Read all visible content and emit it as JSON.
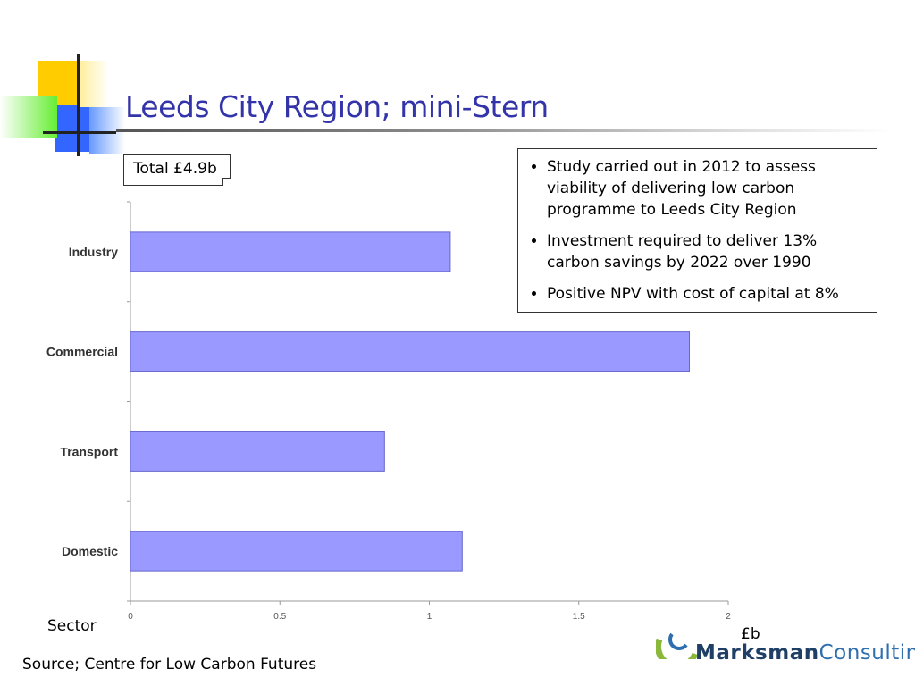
{
  "slide": {
    "title": "Leeds City Region; mini-Stern",
    "total": "Total £4.9b",
    "bullets": [
      "Study carried out in 2012 to assess viability of delivering low carbon programme to Leeds City Region",
      "Investment required to deliver 13% carbon savings by 2022 over 1990",
      "Positive NPV with cost of capital at 8%"
    ],
    "sector_label": "Sector",
    "unit_label": "£b",
    "source": "Source;  Centre for Low Carbon Futures",
    "logo": {
      "bold": "Marksman",
      "light": "Consulting"
    }
  },
  "colors": {
    "title": "#3333aa",
    "bar_fill": "#9999ff",
    "bar_stroke": "#6666cc",
    "logo_dark": "#1f3f66",
    "logo_light": "#2f6fae",
    "logo_green": "#8ab83a"
  },
  "chart_data": {
    "type": "bar",
    "orientation": "horizontal",
    "categories": [
      "Industry",
      "Commercial",
      "Transport",
      "Domestic"
    ],
    "values": [
      1.07,
      1.87,
      0.85,
      1.11
    ],
    "xlim": [
      0,
      2
    ],
    "xticks": [
      "0",
      "0.5",
      "1",
      "1.5",
      "2"
    ],
    "xlabel": "£b",
    "ylabel": "Sector",
    "grid": false
  }
}
